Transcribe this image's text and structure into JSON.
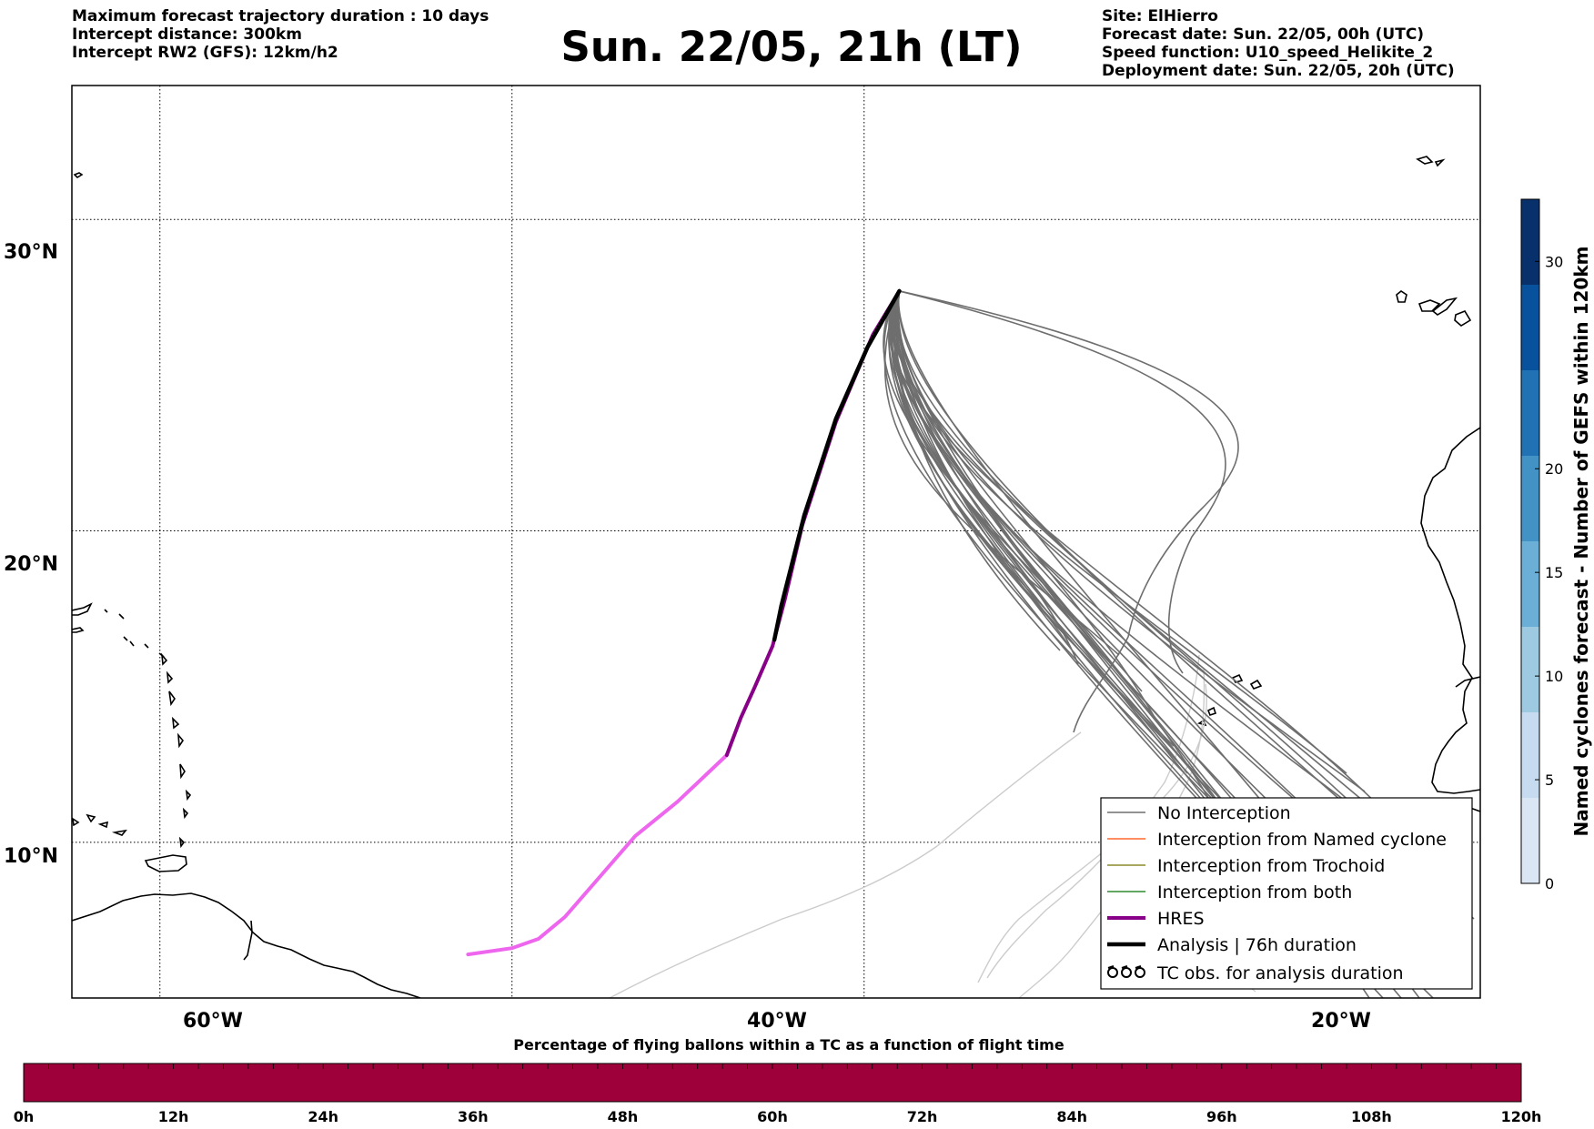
{
  "header": {
    "left_lines": [
      "Maximum forecast trajectory duration : 10 days",
      "Intercept distance: 300km",
      "Intercept RW2 (GFS):  12km/h2"
    ],
    "title": "Sun. 22/05, 21h (LT)",
    "right_lines": [
      "Site: ElHierro",
      "Forecast date: Sun. 22/05, 00h (UTC)",
      "Speed function: U10_speed_Helikite_2",
      "Deployment date: Sun. 22/05, 20h (UTC)"
    ]
  },
  "map": {
    "lon_range": [
      -65,
      15
    ],
    "lat_range": [
      5,
      34.3
    ],
    "lat_labels": [
      "30°N",
      "20°N",
      "10°N"
    ],
    "lat_values": [
      30,
      20,
      10
    ],
    "lon_labels": [
      "60°W",
      "40°W",
      "20°W"
    ],
    "lon_values": [
      -60,
      -40,
      -20
    ],
    "release_site": {
      "lon": -18.0,
      "lat": 27.7
    },
    "hres_track": [
      [
        -18.0,
        27.7
      ],
      [
        -19.5,
        26.3
      ],
      [
        -21.6,
        23.5
      ],
      [
        -23.5,
        20.2
      ],
      [
        -24.5,
        17.8
      ],
      [
        -25.2,
        16.3
      ],
      [
        -26.2,
        15.0
      ],
      [
        -27.0,
        14.0
      ],
      [
        -27.8,
        12.8
      ],
      [
        -30.6,
        11.3
      ],
      [
        -33.0,
        10.2
      ],
      [
        -35.0,
        8.9
      ],
      [
        -37.0,
        7.6
      ],
      [
        -38.5,
        6.9
      ],
      [
        -40.0,
        6.6
      ],
      [
        -42.5,
        6.4
      ]
    ],
    "analysis_track": [
      [
        -18.0,
        27.7
      ],
      [
        -19.8,
        25.9
      ],
      [
        -21.6,
        23.6
      ],
      [
        -23.4,
        20.5
      ],
      [
        -24.7,
        17.6
      ],
      [
        -25.1,
        16.5
      ]
    ],
    "colors": {
      "no_interception": "#6e6e6e",
      "faint_tracks": "#cccccc",
      "named_cyclone": "#ff6a2e",
      "trochoid": "#8a8a2a",
      "both": "#2e8b2e",
      "hres_dark": "#880088",
      "hres_light": "#ee66ee",
      "analysis": "#000000",
      "coast": "#000000"
    }
  },
  "legend": {
    "items": [
      {
        "label": "No Interception",
        "style": "no_interception"
      },
      {
        "label": "Interception from Named cyclone",
        "style": "named_cyclone"
      },
      {
        "label": "Interception from Trochoid",
        "style": "trochoid"
      },
      {
        "label": "Interception from both",
        "style": "both"
      },
      {
        "label": "HRES",
        "style": "hres"
      },
      {
        "label": "Analysis | 76h duration",
        "style": "analysis"
      },
      {
        "label": "TC obs. for analysis duration",
        "style": "tc_obs"
      }
    ]
  },
  "colorbar_right": {
    "label": "Named cyclones forecast - Number of GEFS within 120km",
    "range": [
      0,
      33
    ],
    "ticks": [
      0,
      5,
      10,
      15,
      20,
      30
    ],
    "colors": [
      "#dbe6f5",
      "#c6dbef",
      "#9ecae1",
      "#6baed6",
      "#4292c6",
      "#2171b5",
      "#08519c",
      "#08306b"
    ]
  },
  "colorbar_bottom": {
    "title": "Percentage of flying ballons within a TC as a function of flight time",
    "ticks": [
      "0h",
      "12h",
      "24h",
      "36h",
      "48h",
      "60h",
      "72h",
      "84h",
      "96h",
      "108h",
      "120h"
    ],
    "fill_color": "#9e003a"
  }
}
